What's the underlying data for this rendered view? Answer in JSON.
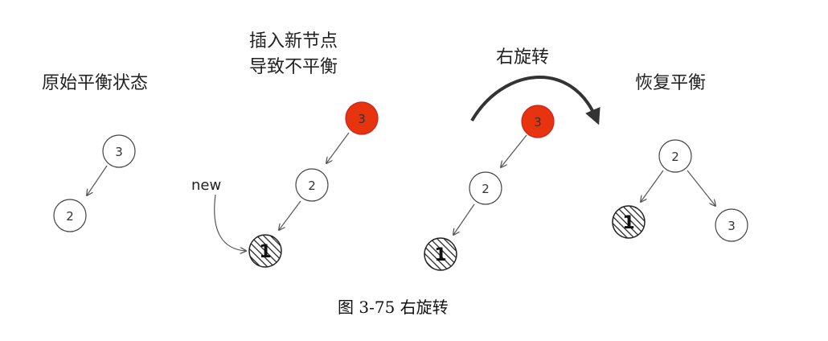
{
  "panels": {
    "original": {
      "title": "原始平衡状态",
      "node_top": "3",
      "node_bottom": "2"
    },
    "insert": {
      "title_line1": "插入新节点",
      "title_line2": "导致不平衡",
      "node_top": "3",
      "node_mid": "2",
      "node_new": "1",
      "new_label": "new"
    },
    "rotate": {
      "title": "右旋转",
      "node_top": "3",
      "node_mid": "2",
      "node_bottom": "1"
    },
    "restored": {
      "title": "恢复平衡",
      "node_root": "2",
      "node_left": "1",
      "node_right": "3"
    }
  },
  "caption": "图 3-75  右旋转",
  "colors": {
    "highlight": "#e8330f",
    "stroke": "#444444",
    "arrow": "#555555"
  }
}
